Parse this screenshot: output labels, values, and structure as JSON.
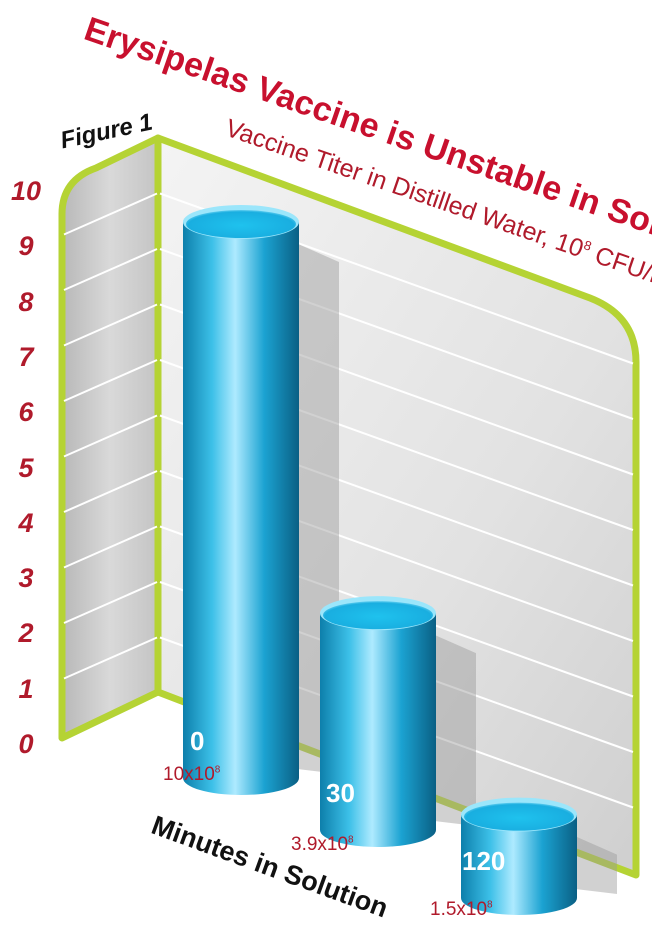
{
  "figure_label": "Figure 1",
  "chart_data": {
    "type": "bar",
    "title": "Erysipelas Vaccine is Unstable in Solution",
    "subtitle": "Vaccine Titer in Distilled Water, 10",
    "subtitle_exponent": "8",
    "subtitle_unit": " CFU/ml",
    "xlabel": "Minutes in Solution",
    "ylabel": "",
    "ylim": [
      0,
      10
    ],
    "yticks": [
      "0",
      "1",
      "2",
      "3",
      "4",
      "5",
      "6",
      "7",
      "8",
      "9",
      "10"
    ],
    "categories": [
      "0",
      "30",
      "120"
    ],
    "values": [
      10,
      3.9,
      1.5
    ],
    "value_labels": [
      {
        "base": "10x10",
        "exp": "8"
      },
      {
        "base": "3.9x10",
        "exp": "8"
      },
      {
        "base": "1.5x10",
        "exp": "8"
      }
    ],
    "grid": true,
    "colors": {
      "bar": "#1fa9d6",
      "bar_light": "#8fe0f7",
      "bar_dark": "#0a6f96",
      "frame": "#b5d334",
      "panel": "#dedede",
      "label_red": "#b01a2b",
      "title_red": "#c8102e"
    }
  }
}
